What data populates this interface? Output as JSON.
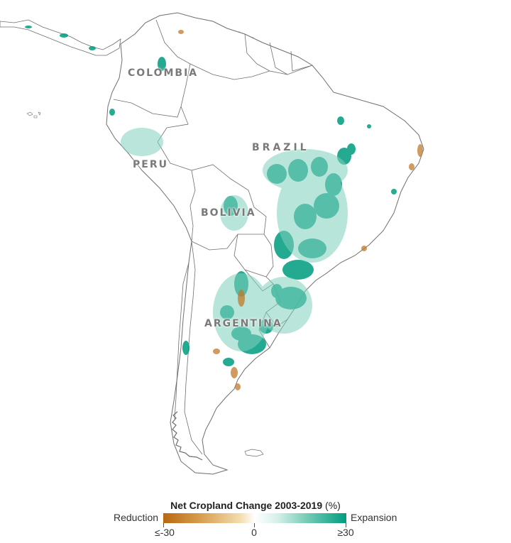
{
  "map": {
    "labels": {
      "colombia": "COLOMBIA",
      "brazil": "BRAZIL",
      "peru": "PERU",
      "bolivia": "BOLIVIA",
      "argentina": "ARGENTINA"
    },
    "colors": {
      "land": "#ffffff",
      "border": "#6e6e6e",
      "expansion": "#009c80",
      "reduction": "#c07a2c",
      "label": "#7a7a7a"
    }
  },
  "legend": {
    "title": "Net Cropland Change 2003-2019",
    "unit": "(%)",
    "left_label": "Reduction",
    "right_label": "Expansion",
    "min_label": "≤-30",
    "mid_label": "0",
    "max_label": "≥30",
    "min_value": -30,
    "max_value": 30
  }
}
